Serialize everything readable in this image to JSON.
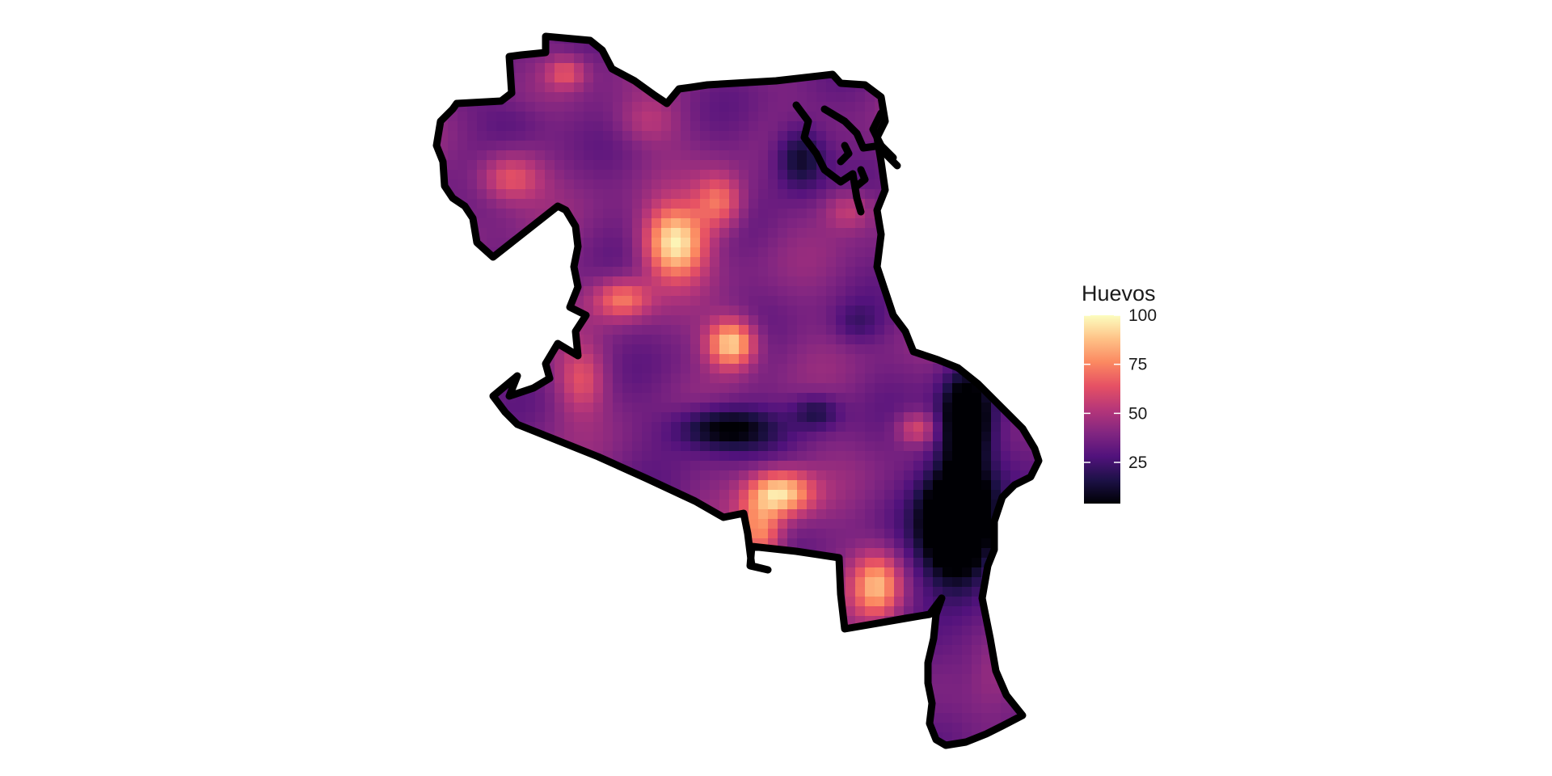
{
  "map": {
    "fill_variable": "Huevos",
    "color_scale": "magma",
    "color_stops": [
      "#000004",
      "#1d1147",
      "#51127c",
      "#822681",
      "#b63679",
      "#e65164",
      "#fb8861",
      "#fec287",
      "#fcfdbf"
    ],
    "boundary_color": "#000000",
    "background": "#ffffff"
  },
  "legend": {
    "title": "Huevos",
    "placement": "right",
    "range": [
      4,
      100
    ],
    "ticks": [
      {
        "value": 100,
        "label": "100"
      },
      {
        "value": 75,
        "label": "75"
      },
      {
        "value": 50,
        "label": "50"
      },
      {
        "value": 25,
        "label": "25"
      }
    ]
  }
}
